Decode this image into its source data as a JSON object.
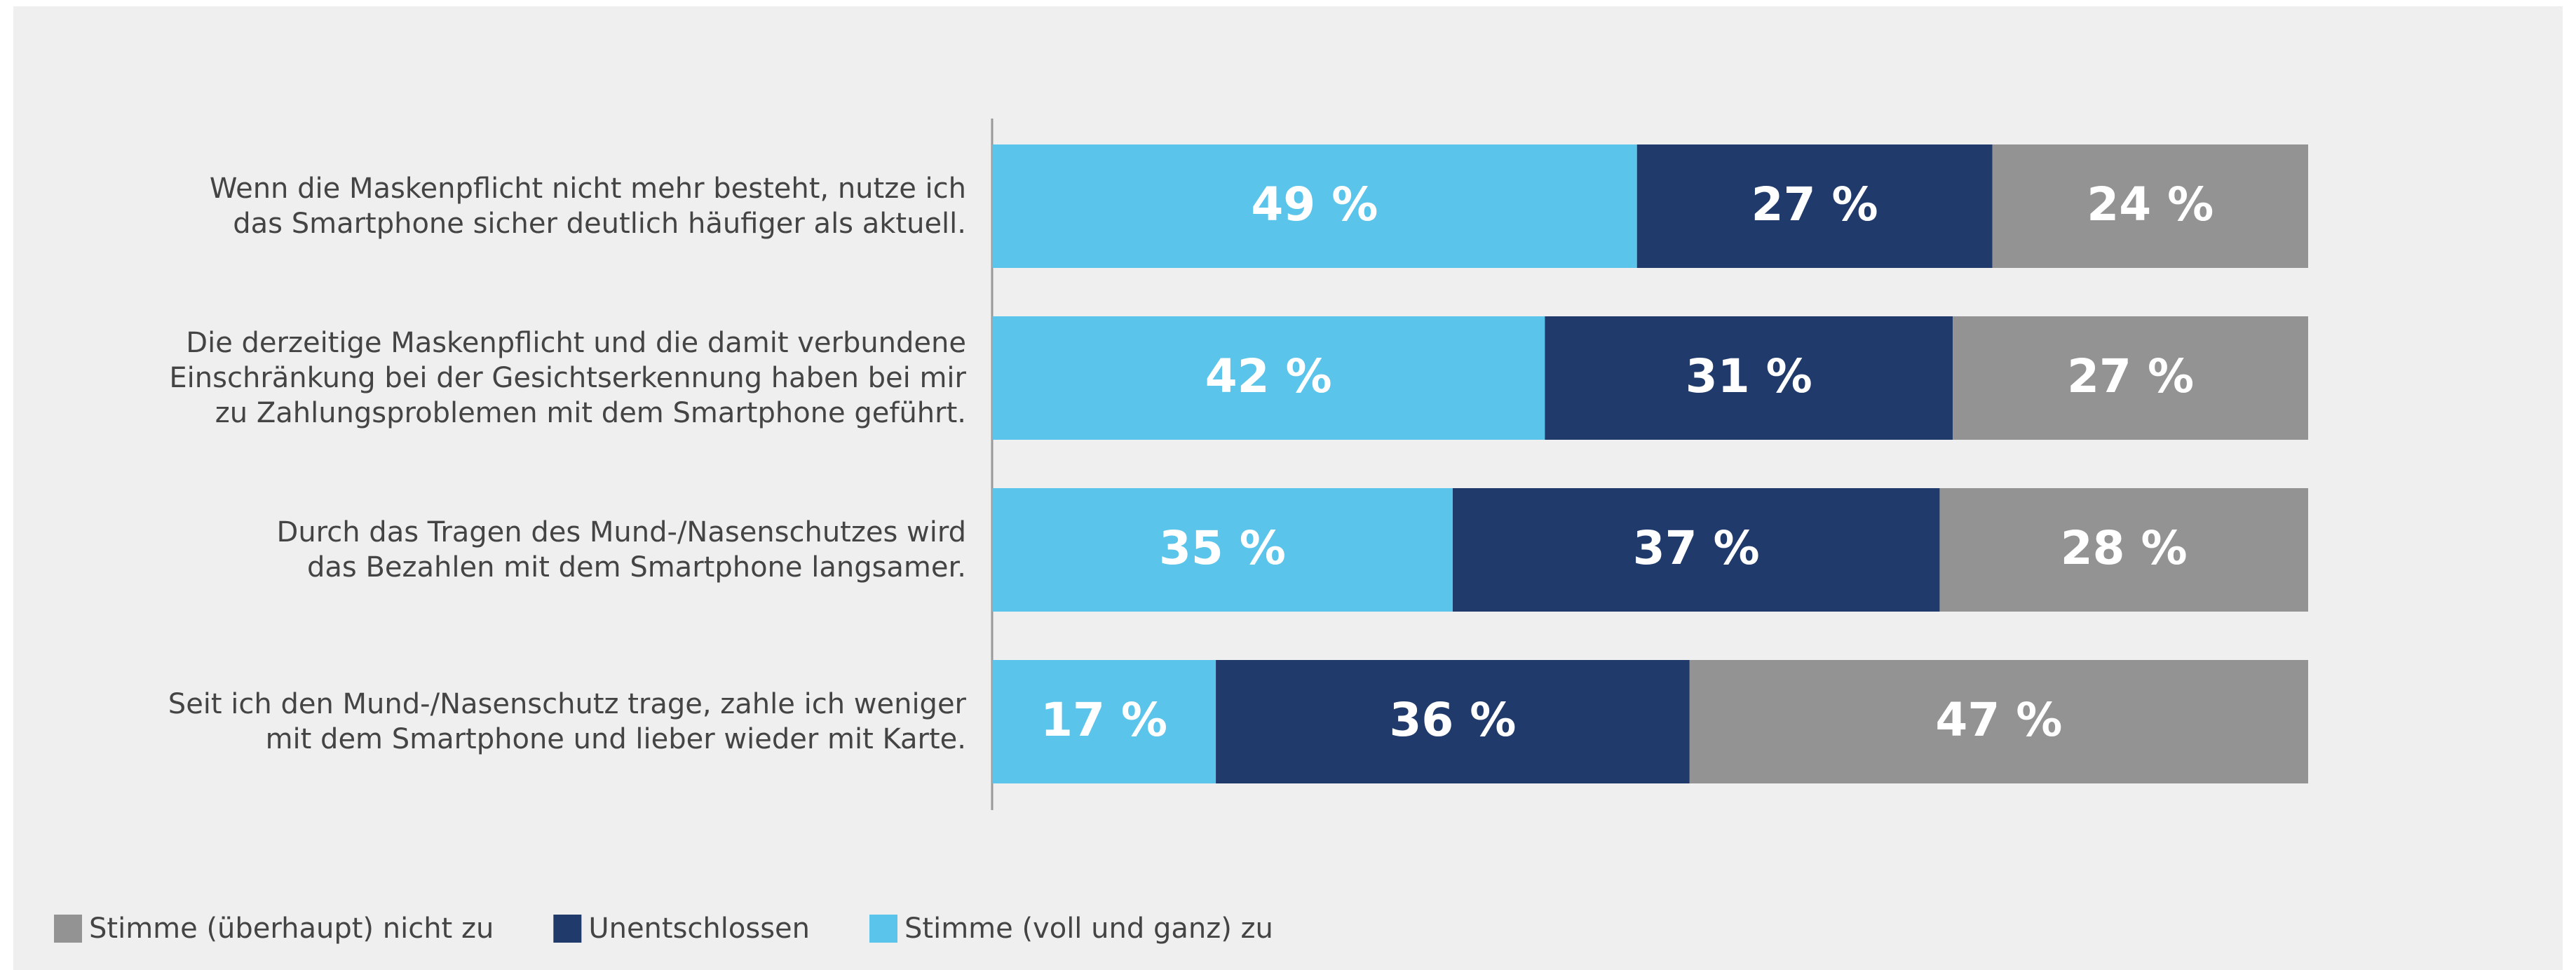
{
  "chart_data": {
    "type": "stacked-bar-horizontal",
    "categories": [
      "Wenn die Maskenpflicht nicht mehr besteht, nutze ich\ndas Smartphone sicher deutlich häufiger als aktuell.",
      "Die derzeitige Maskenpflicht und die damit verbundene\nEinschränkung bei der Gesichtserkennung haben bei mir\nzu Zahlungsproblemen mit dem Smartphone geführt.",
      "Durch das Tragen des Mund-/Nasenschutzes wird\ndas Bezahlen mit dem Smartphone langsamer.",
      "Seit ich den Mund-/Nasenschutz trage, zahle ich weniger\nmit dem Smartphone und lieber wieder mit Karte."
    ],
    "series": [
      {
        "name": "Stimme (voll und ganz) zu",
        "color": "#5bc4ea",
        "values": [
          49,
          42,
          35,
          17
        ],
        "value_labels": [
          "49 %",
          "42 %",
          "35 %",
          "17 %"
        ]
      },
      {
        "name": "Unentschlossen",
        "color": "#1f3a6b",
        "values": [
          27,
          31,
          37,
          36
        ],
        "value_labels": [
          "27 %",
          "31 %",
          "37 %",
          "36 %"
        ]
      },
      {
        "name": "Stimme (überhaupt) nicht zu",
        "color": "#939393",
        "values": [
          24,
          27,
          28,
          47
        ],
        "value_labels": [
          "24 %",
          "27 %",
          "28 %",
          "47 %"
        ]
      }
    ],
    "xlim": [
      0,
      100
    ]
  }
}
